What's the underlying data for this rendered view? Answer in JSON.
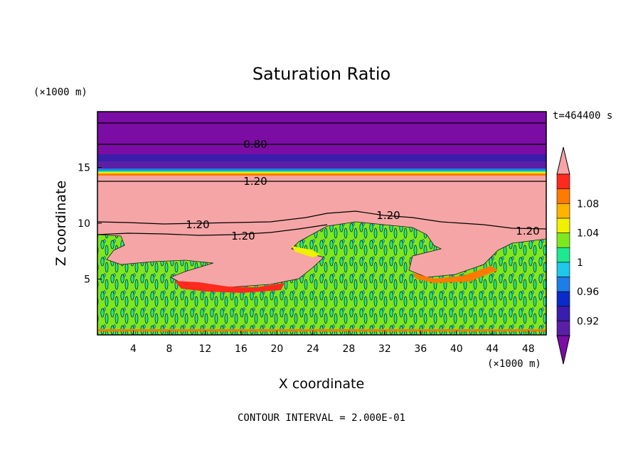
{
  "chart_data": {
    "type": "heatmap",
    "title": "Saturation Ratio",
    "xlabel": "X coordinate",
    "ylabel": "Z coordinate",
    "x_unit": "(×1000 m)",
    "y_unit": "(×1000 m)",
    "time_label": "t=464400 s",
    "footer": "CONTOUR INTERVAL = 2.000E-01",
    "xlim": [
      0,
      50
    ],
    "ylim": [
      0,
      20
    ],
    "x_ticks": [
      4,
      8,
      12,
      16,
      20,
      24,
      28,
      32,
      36,
      40,
      44,
      48
    ],
    "y_ticks": [
      5,
      10,
      15
    ],
    "colorbar": {
      "levels": [
        0.92,
        0.94,
        0.96,
        0.98,
        1.0,
        1.02,
        1.04,
        1.06,
        1.08,
        1.1
      ],
      "tick_labels": [
        "0.92",
        "0.96",
        "1",
        "1.04",
        "1.08"
      ],
      "colors": [
        "#5b1fa6",
        "#3a1daa",
        "#0a2bc7",
        "#1e7ee8",
        "#1ec8e8",
        "#1ee890",
        "#7ee81e",
        "#f0f000",
        "#ffb400",
        "#ff7a00",
        "#ff2a1e",
        "#f5a5a5",
        "#7b0da4"
      ],
      "over_color": "#f5a5a5",
      "under_color": "#7b0da4"
    },
    "contour_labels": [
      {
        "text": "0.80",
        "x": 20,
        "z": 17.3
      },
      {
        "text": "1.20",
        "x": 20,
        "z": 13.8
      },
      {
        "text": "1.20",
        "x": 11,
        "z": 9.9
      },
      {
        "text": "1.20",
        "x": 16,
        "z": 8.9
      },
      {
        "text": "1.20",
        "x": 33,
        "z": 10.6
      },
      {
        "text": "1.20",
        "x": 48.5,
        "z": 9.4
      }
    ],
    "regions": {
      "top_layer_color": "#7b0da4",
      "supersaturated_color": "#f5a5a5",
      "noise_base_color": "#7ee81e"
    }
  }
}
